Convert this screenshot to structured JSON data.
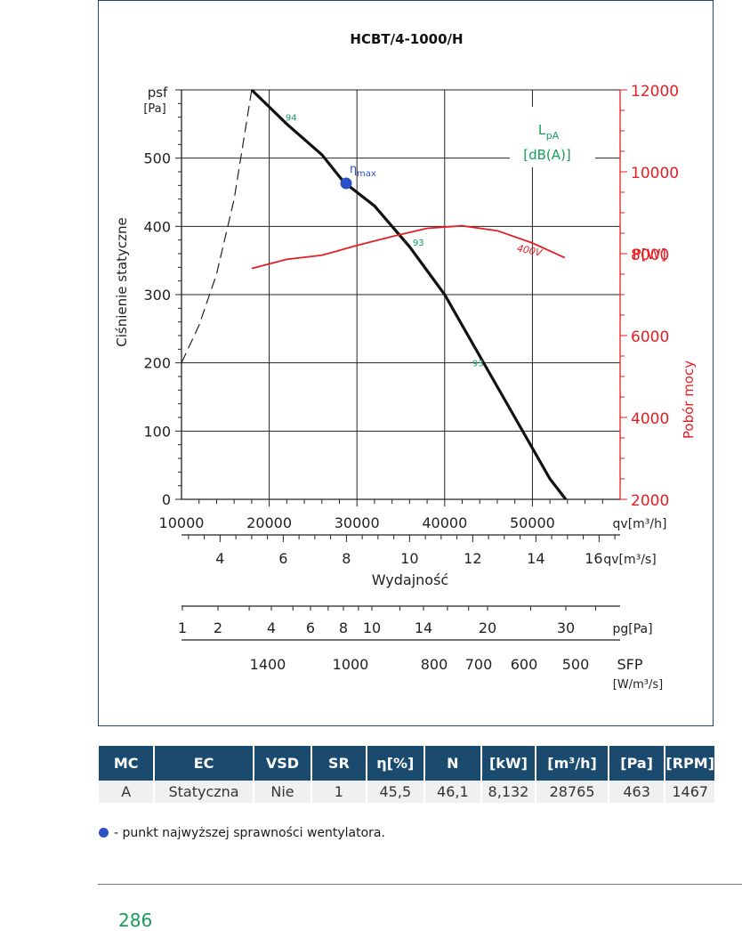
{
  "colors": {
    "frame": "#1b4a6f",
    "pressure_curve": "#111111",
    "power_curve": "#e31e24",
    "noise_labels": "#17a05a",
    "eta_point": "#2b4fc4",
    "table_header_bg": "#1b4a6f",
    "table_row_bg": "#eef0f2",
    "page_number": "#1a9a5c"
  },
  "chart_data": {
    "type": "line",
    "title": "HCBT/4-1000/H",
    "y_label": "Ciśnienie statyczne",
    "y_symbol": "psf",
    "y_unit": "[Pa]",
    "ylim": [
      0,
      600
    ],
    "y_ticks": [
      "0",
      "100",
      "200",
      "300",
      "400",
      "500"
    ],
    "x_unit_label": "qv[m³/h]",
    "xlim": [
      10000,
      60000
    ],
    "x_ticks": [
      "10000",
      "20000",
      "30000",
      "40000",
      "50000"
    ],
    "x2_unit_label": "qv[m³/s]",
    "x2_ticks": [
      "4",
      "6",
      "8",
      "10",
      "12",
      "14",
      "16"
    ],
    "x2_title": "Wydajność",
    "pg_label": "pg[Pa]",
    "pg_ticks": [
      "1",
      "2",
      "4",
      "6",
      "8",
      "10",
      "14",
      "20",
      "30"
    ],
    "sfp_label": "SFP",
    "sfp_unit": "[W/m³/s]",
    "sfp_ticks": [
      "1400",
      "1000",
      "800",
      "700",
      "600",
      "500"
    ],
    "y2_label": "Pobór mocy",
    "y2_symbol": "P[W]",
    "y2lim": [
      2000,
      12000
    ],
    "y2_ticks": [
      "2000",
      "4000",
      "6000",
      "8000",
      "10000",
      "12000"
    ],
    "grid": true,
    "noise_legend": {
      "symbol": "LpA",
      "unit": "[dB(A)]"
    },
    "series": [
      {
        "role": "static_pressure",
        "x": [
          18000,
          22000,
          26000,
          28500,
          32000,
          36000,
          40000,
          44000,
          48000,
          52000,
          53800
        ],
        "y": [
          600,
          550,
          505,
          465,
          430,
          370,
          300,
          210,
          120,
          30,
          0
        ]
      },
      {
        "role": "system_line_dashed",
        "x": [
          10000,
          12000,
          14000,
          16000,
          18000
        ],
        "y": [
          200,
          255,
          330,
          440,
          600
        ]
      },
      {
        "role": "power",
        "name": "400V",
        "x": [
          18000,
          22000,
          26000,
          30000,
          34000,
          38000,
          42000,
          46000,
          50000,
          53700
        ],
        "y": [
          7640,
          7860,
          7960,
          8200,
          8420,
          8620,
          8680,
          8560,
          8260,
          7900
        ]
      }
    ],
    "noise_points": [
      {
        "label": "94",
        "x": 22500,
        "y": 555
      },
      {
        "label": "93",
        "x": 37000,
        "y": 372
      },
      {
        "label": "93",
        "x": 43800,
        "y": 195
      }
    ],
    "eta_point": {
      "label": "ηmax",
      "x": 28765,
      "y": 463
    }
  },
  "table": {
    "headers": [
      "MC",
      "EC",
      "VSD",
      "SR",
      "η[%]",
      "N",
      "[kW]",
      "[m³/h]",
      "[Pa]",
      "[RPM]"
    ],
    "rows": [
      [
        "A",
        "Statyczna",
        "Nie",
        "1",
        "45,5",
        "46,1",
        "8,132",
        "28765",
        "463",
        "1467"
      ]
    ]
  },
  "footnote": "- punkt najwyższej sprawności wentylatora.",
  "page_number": "286"
}
